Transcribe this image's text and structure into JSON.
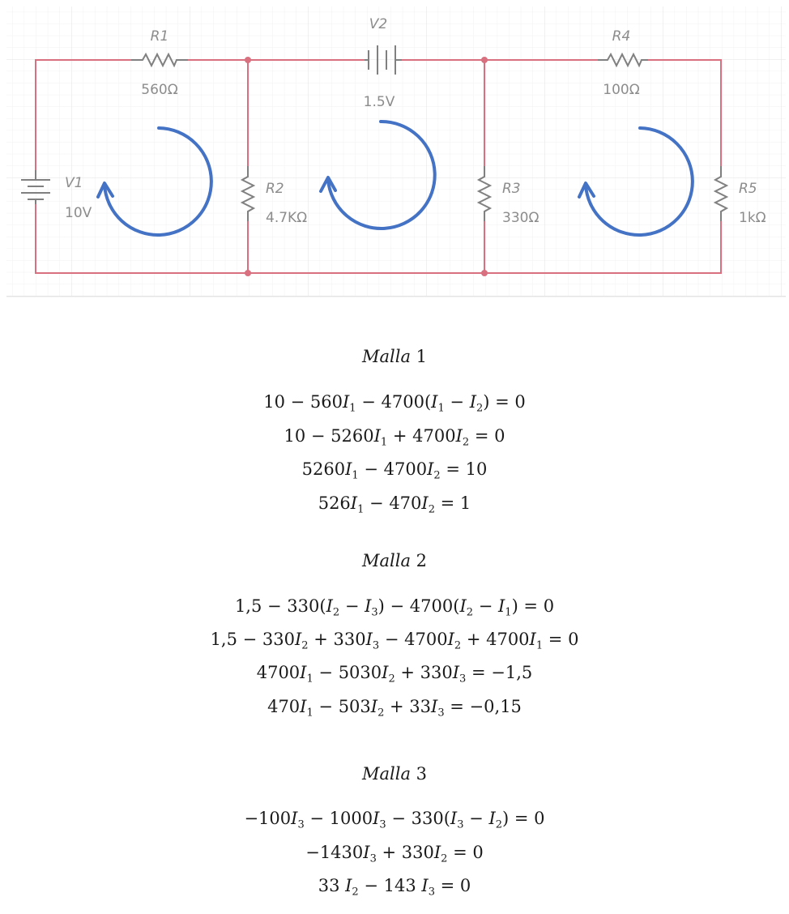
{
  "circuit": {
    "components": {
      "R1": {
        "name": "R1",
        "value": "560Ω"
      },
      "R2": {
        "name": "R2",
        "value": "4.7KΩ"
      },
      "R3": {
        "name": "R3",
        "value": "330Ω"
      },
      "R4": {
        "name": "R4",
        "value": "100Ω"
      },
      "R5": {
        "name": "R5",
        "value": "1kΩ"
      },
      "V1": {
        "name": "V1",
        "value": "10V"
      },
      "V2": {
        "name": "V2",
        "value": "1.5V"
      }
    },
    "colors": {
      "wire": "#d9707f",
      "component": "#808080",
      "loop_arrow": "#4472c4",
      "grid": "#ececec"
    }
  },
  "equations": {
    "mesh1": {
      "heading": "Malla 1",
      "lines": [
        "10 − 560I_1 − 4700(I_1 − I_2) = 0",
        "10 − 5260I_1 + 4700I_2 = 0",
        "5260I_1 − 4700I_2 = 10",
        "526I_1 − 470I_2 = 1"
      ]
    },
    "mesh2": {
      "heading": "Malla 2",
      "lines": [
        "1,5 − 330(I_2 − I_3) − 4700(I_2 − I_1) = 0",
        "1,5 − 330I_2 + 330I_3 − 4700I_2 + 4700I_1 = 0",
        "4700I_1 − 5030I_2 + 330I_3 = −1,5",
        "470I_1 − 503I_2 + 33I_3 = −0,15"
      ]
    },
    "mesh3": {
      "heading": "Malla 3",
      "lines": [
        "−100I_3 − 1000I_3 − 330(I_3 − I_2) = 0",
        "−1430I_3 + 330I_2 = 0",
        "33 I_2 − 143 I_3 = 0"
      ]
    }
  }
}
